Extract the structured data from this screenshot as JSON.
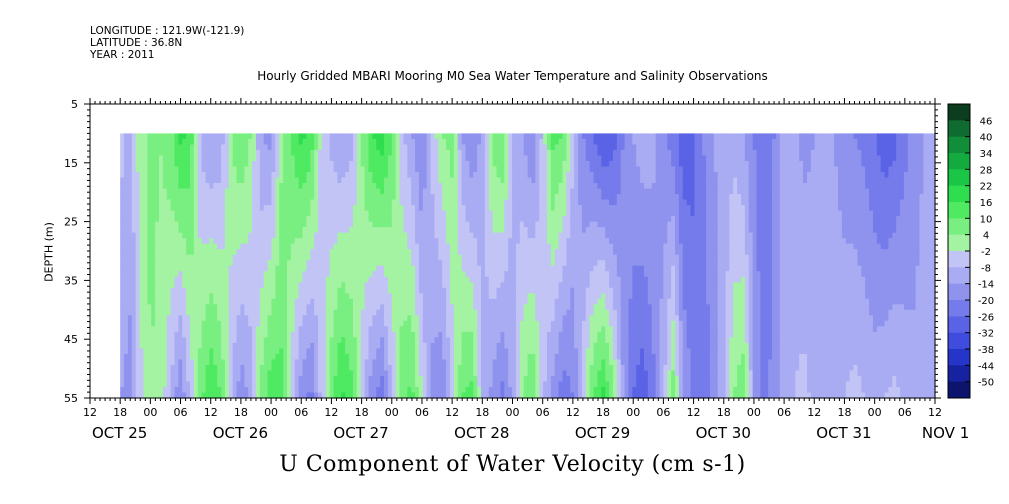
{
  "header": {
    "longitude": "LONGITUDE : 121.9W(-121.9)",
    "latitude": "LATITUDE : 36.8N",
    "year": "YEAR : 2011"
  },
  "title": "Hourly Gridded MBARI Mooring M0 Sea Water Temperature and Salinity Observations",
  "bottom_label": "U Component of Water Velocity (cm s-1)",
  "chart_data": {
    "type": "heatmap",
    "title": "Hourly Gridded MBARI Mooring M0 Sea Water Temperature and Salinity Observations",
    "xlabel": "",
    "ylabel": "DEPTH (m)",
    "colorbar_label": "U Component of Water Velocity (cm s-1)",
    "y_reversed": true,
    "ylim": [
      5,
      55
    ],
    "y_ticks": [
      5,
      15,
      25,
      35,
      45,
      55
    ],
    "data_depth_range": [
      10,
      55
    ],
    "x_start": "2011-10-25T12:00",
    "x_end": "2011-11-01T12:00",
    "x_range_hours": [
      0,
      168
    ],
    "data_start_hour": 6,
    "x_hour_labels": [
      "12",
      "18",
      "00",
      "06",
      "12",
      "18",
      "00",
      "06",
      "12",
      "18",
      "00",
      "06",
      "12",
      "18",
      "00",
      "06",
      "12",
      "18",
      "00",
      "06",
      "12",
      "18",
      "00",
      "06",
      "12",
      "18",
      "00",
      "06",
      "12"
    ],
    "x_day_labels": [
      {
        "label": "OCT 25",
        "hour": 0
      },
      {
        "label": "OCT 26",
        "hour": 24
      },
      {
        "label": "OCT 27",
        "hour": 48
      },
      {
        "label": "OCT 28",
        "hour": 72
      },
      {
        "label": "OCT 29",
        "hour": 96
      },
      {
        "label": "OCT 30",
        "hour": 120
      },
      {
        "label": "OCT 31",
        "hour": 144
      },
      {
        "label": "NOV 1",
        "hour": 165
      }
    ],
    "colorbar_levels": [
      "46",
      "40",
      "34",
      "28",
      "22",
      "16",
      "10",
      "4",
      "-2",
      "-8",
      "-14",
      "-20",
      "-26",
      "-32",
      "-38",
      "-44",
      "-50"
    ],
    "colorbar_colors": [
      "#0b3d1e",
      "#106b30",
      "#128d3a",
      "#13aa3f",
      "#1bc646",
      "#2ede4f",
      "#4fe962",
      "#78ef80",
      "#a4f3a2",
      "#c2c4f6",
      "#a9acf2",
      "#8f93ee",
      "#757bea",
      "#5a63e6",
      "#3f4cde",
      "#2535c9",
      "#1622a0",
      "#0c146e"
    ],
    "u_profile": {
      "depths_m": [
        10,
        55
      ],
      "hours": [
        6,
        8,
        10,
        12,
        14,
        16,
        18,
        20,
        22,
        24,
        26,
        28,
        30,
        32,
        34,
        36,
        38,
        40,
        42,
        44,
        46,
        48,
        50,
        52,
        54,
        56,
        58,
        60,
        62,
        64,
        66,
        68,
        70,
        72,
        74,
        76,
        78,
        80,
        82,
        84,
        86,
        88,
        90,
        92,
        94,
        96,
        98,
        100,
        102,
        104,
        106,
        108,
        110,
        112,
        114,
        116,
        118,
        120,
        122,
        124,
        126,
        128,
        130,
        132,
        134,
        136,
        138,
        140,
        142,
        144,
        146,
        148,
        150,
        152,
        154,
        156,
        158,
        160,
        162,
        164,
        166,
        168
      ],
      "surface": [
        -6,
        -10,
        2,
        6,
        4,
        8,
        18,
        14,
        -10,
        -14,
        -12,
        4,
        10,
        4,
        -14,
        -16,
        2,
        10,
        18,
        14,
        -4,
        -10,
        -14,
        -10,
        4,
        16,
        20,
        10,
        -6,
        -14,
        -20,
        -6,
        4,
        6,
        -14,
        -20,
        -12,
        6,
        10,
        -8,
        -14,
        -20,
        -6,
        12,
        10,
        -6,
        -20,
        -26,
        -32,
        -30,
        -20,
        -14,
        -10,
        -12,
        -18,
        -24,
        -30,
        -28,
        -20,
        -14,
        -12,
        -10,
        -14,
        -20,
        -26,
        -20,
        -10,
        -12,
        -16,
        -14,
        -10,
        -14,
        -18,
        -20,
        -22,
        -26,
        -30,
        -28,
        -22,
        -18,
        -14,
        -12
      ],
      "bottom": [
        -14,
        -16,
        -4,
        4,
        2,
        -8,
        -20,
        -6,
        8,
        16,
        10,
        -8,
        -18,
        -12,
        6,
        14,
        12,
        -4,
        -18,
        -22,
        -6,
        8,
        18,
        12,
        -4,
        -18,
        -24,
        -8,
        8,
        12,
        -2,
        -16,
        -20,
        -6,
        10,
        12,
        -8,
        -16,
        -22,
        -12,
        4,
        10,
        -6,
        -16,
        -24,
        -20,
        -4,
        10,
        18,
        6,
        -14,
        -26,
        -30,
        -22,
        -10,
        8,
        -14,
        -22,
        -24,
        -18,
        -10,
        4,
        8,
        -14,
        -22,
        -18,
        -10,
        -8,
        -6,
        -10,
        -12,
        -10,
        -8,
        -6,
        -8,
        -10,
        -8,
        -6,
        -10,
        -12,
        -8,
        -10
      ]
    }
  }
}
